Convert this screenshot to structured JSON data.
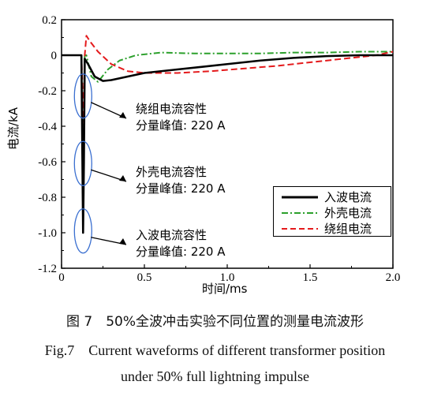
{
  "chart_data": {
    "type": "line",
    "xlabel": "时间/ms",
    "ylabel": "电流/kA",
    "xlim": [
      0,
      2.0
    ],
    "ylim": [
      -1.2,
      0.2
    ],
    "x_ticks": [
      "0",
      "0.5",
      "1.0",
      "1.5",
      "2.0"
    ],
    "y_ticks": [
      "0.2",
      "0",
      "-0.2",
      "-0.4",
      "-0.6",
      "-0.8",
      "-1.0",
      "-1.2"
    ],
    "legend_position": "bottom-right",
    "series": [
      {
        "name": "入波电流",
        "color": "#000000",
        "style": "solid",
        "points": [
          [
            0,
            0
          ],
          [
            0.12,
            0
          ],
          [
            0.13,
            -1.0
          ],
          [
            0.135,
            -0.6
          ],
          [
            0.14,
            -0.02
          ],
          [
            0.16,
            -0.05
          ],
          [
            0.2,
            -0.12
          ],
          [
            0.25,
            -0.145
          ],
          [
            0.3,
            -0.14
          ],
          [
            0.4,
            -0.12
          ],
          [
            0.5,
            -0.1
          ],
          [
            0.7,
            -0.08
          ],
          [
            1.0,
            -0.05
          ],
          [
            1.2,
            -0.03
          ],
          [
            1.4,
            -0.015
          ],
          [
            1.6,
            -0.005
          ],
          [
            1.8,
            0.0
          ],
          [
            2.0,
            0.0
          ]
        ]
      },
      {
        "name": "外壳电流",
        "color": "#2ca02c",
        "style": "dashdot",
        "points": [
          [
            0,
            0
          ],
          [
            0.12,
            0
          ],
          [
            0.13,
            -0.7
          ],
          [
            0.135,
            -0.3
          ],
          [
            0.14,
            0.0
          ],
          [
            0.15,
            0.0
          ],
          [
            0.18,
            -0.12
          ],
          [
            0.22,
            -0.15
          ],
          [
            0.28,
            -0.08
          ],
          [
            0.35,
            -0.03
          ],
          [
            0.45,
            0.0
          ],
          [
            0.6,
            0.015
          ],
          [
            0.8,
            0.01
          ],
          [
            1.0,
            0.01
          ],
          [
            1.2,
            0.01
          ],
          [
            1.4,
            0.015
          ],
          [
            1.6,
            0.015
          ],
          [
            1.8,
            0.02
          ],
          [
            2.0,
            0.02
          ]
        ]
      },
      {
        "name": "绕组电流",
        "color": "#e41a1c",
        "style": "dashed",
        "points": [
          [
            0,
            0
          ],
          [
            0.12,
            0
          ],
          [
            0.135,
            -0.4
          ],
          [
            0.14,
            0.0
          ],
          [
            0.15,
            0.11
          ],
          [
            0.17,
            0.08
          ],
          [
            0.22,
            0.02
          ],
          [
            0.3,
            -0.05
          ],
          [
            0.4,
            -0.09
          ],
          [
            0.5,
            -0.1
          ],
          [
            0.7,
            -0.1
          ],
          [
            0.9,
            -0.09
          ],
          [
            1.1,
            -0.075
          ],
          [
            1.3,
            -0.06
          ],
          [
            1.5,
            -0.04
          ],
          [
            1.7,
            -0.02
          ],
          [
            1.9,
            0.0
          ],
          [
            2.0,
            0.02
          ]
        ]
      }
    ],
    "annotations": [
      {
        "text1": "绕组电流容性",
        "text2": "分量峰值: 220 A",
        "ellipse_center": [
          0.13,
          -0.23
        ]
      },
      {
        "text1": "外壳电流容性",
        "text2": "分量峰值: 220 A",
        "ellipse_center": [
          0.13,
          -0.61
        ]
      },
      {
        "text1": "入波电流容性",
        "text2": "分量峰值: 220 A",
        "ellipse_center": [
          0.13,
          -0.99
        ]
      }
    ]
  },
  "caption": {
    "cn": "图 7　50%全波冲击实验不同位置的测量电流波形",
    "en_line1": "Fig.7　Current waveforms of different transformer position",
    "en_line2": "under 50% full lightning impulse"
  }
}
